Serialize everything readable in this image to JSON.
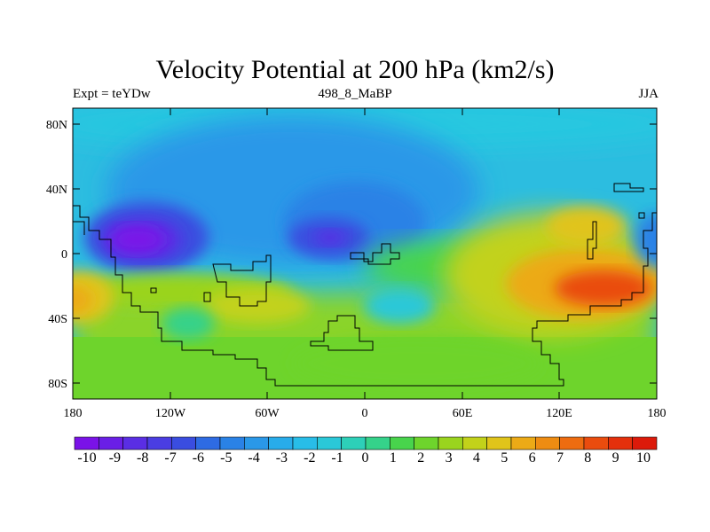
{
  "title": "Velocity Potential at 200 hPa (km2/s)",
  "subtitle_left": "Expt = teYDw",
  "subtitle_center": "498_8_MaBP",
  "subtitle_right": "JJA",
  "axes": {
    "y_ticks": [
      "80N",
      "40N",
      "0",
      "40S",
      "80S"
    ],
    "x_ticks": [
      "180",
      "120W",
      "60W",
      "0",
      "60E",
      "120E",
      "180"
    ]
  },
  "colorbar": {
    "labels": [
      "-10",
      "-9",
      "-8",
      "-7",
      "-6",
      "-5",
      "-4",
      "-3",
      "-2",
      "-1",
      "0",
      "1",
      "2",
      "3",
      "4",
      "5",
      "6",
      "7",
      "8",
      "9",
      "10"
    ],
    "colors": [
      "#7a12e8",
      "#6a1fe6",
      "#5a2ee4",
      "#4a3de2",
      "#3a4de0",
      "#2e6be3",
      "#2a82e6",
      "#2a98e8",
      "#28acea",
      "#28bde8",
      "#2ac8d8",
      "#2dd0b8",
      "#35d28a",
      "#48d44c",
      "#6ed42c",
      "#9ad41e",
      "#c2d21a",
      "#e0c41a",
      "#ecaa16",
      "#ee8c12",
      "#ee6c10",
      "#ea4c0e",
      "#e4300c",
      "#dc1a0a"
    ]
  },
  "chart_data": {
    "type": "heatmap",
    "title": "Velocity Potential at 200 hPa (km2/s)",
    "experiment": "teYDw",
    "period": "JJA",
    "run": "498_8_MaBP",
    "x_range": [
      -180,
      180
    ],
    "y_range": [
      -90,
      90
    ],
    "value_range": [
      -10,
      10
    ],
    "features": [
      {
        "name": "minimum",
        "lon": -140,
        "lat": 12,
        "value": -10
      },
      {
        "name": "minimum",
        "lon": -20,
        "lat": 10,
        "value": -7
      },
      {
        "name": "maximum",
        "lon": 140,
        "lat": -25,
        "value": 9
      },
      {
        "name": "maximum",
        "lon": -175,
        "lat": -30,
        "value": 7
      },
      {
        "name": "maximum",
        "lon": 130,
        "lat": 30,
        "value": 6
      }
    ]
  }
}
